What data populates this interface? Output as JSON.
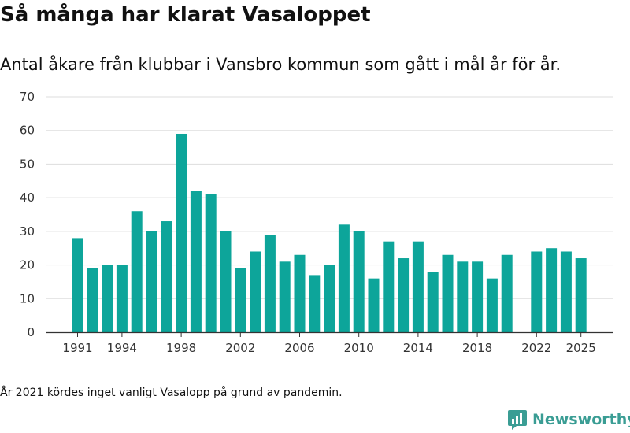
{
  "title": "Så många har klarat Vasaloppet",
  "subtitle": "Antal åkare från klubbar i Vansbro kommun som gått i mål år för år.",
  "note": "År 2021 kördes inget vanligt Vasalopp på grund av pandemin.",
  "brand": {
    "name": "Newsworthy",
    "icon": "newsworthy-logo-icon",
    "color": "#3a9d94"
  },
  "chart_data": {
    "type": "bar",
    "title": "Så många har klarat Vasaloppet",
    "subtitle": "Antal åkare från klubbar i Vansbro kommun som gått i mål år för år.",
    "xlabel": "",
    "ylabel": "",
    "ylim": [
      0,
      70
    ],
    "yticks": [
      0,
      10,
      20,
      30,
      40,
      50,
      60,
      70
    ],
    "xticks": [
      1991,
      1994,
      1998,
      2002,
      2006,
      2010,
      2014,
      2018,
      2022,
      2025
    ],
    "grid": true,
    "legend": "none",
    "bar_color": "#0da59a",
    "categories": [
      1991,
      1992,
      1993,
      1994,
      1995,
      1996,
      1997,
      1998,
      1999,
      2000,
      2001,
      2002,
      2003,
      2004,
      2005,
      2006,
      2007,
      2008,
      2009,
      2010,
      2011,
      2012,
      2013,
      2014,
      2015,
      2016,
      2017,
      2018,
      2019,
      2020,
      2021,
      2022,
      2023,
      2024,
      2025
    ],
    "values": [
      28,
      19,
      20,
      20,
      36,
      30,
      33,
      59,
      42,
      41,
      30,
      19,
      24,
      29,
      21,
      23,
      17,
      20,
      32,
      30,
      16,
      27,
      22,
      27,
      18,
      23,
      21,
      21,
      16,
      23,
      null,
      24,
      25,
      24,
      22
    ]
  }
}
